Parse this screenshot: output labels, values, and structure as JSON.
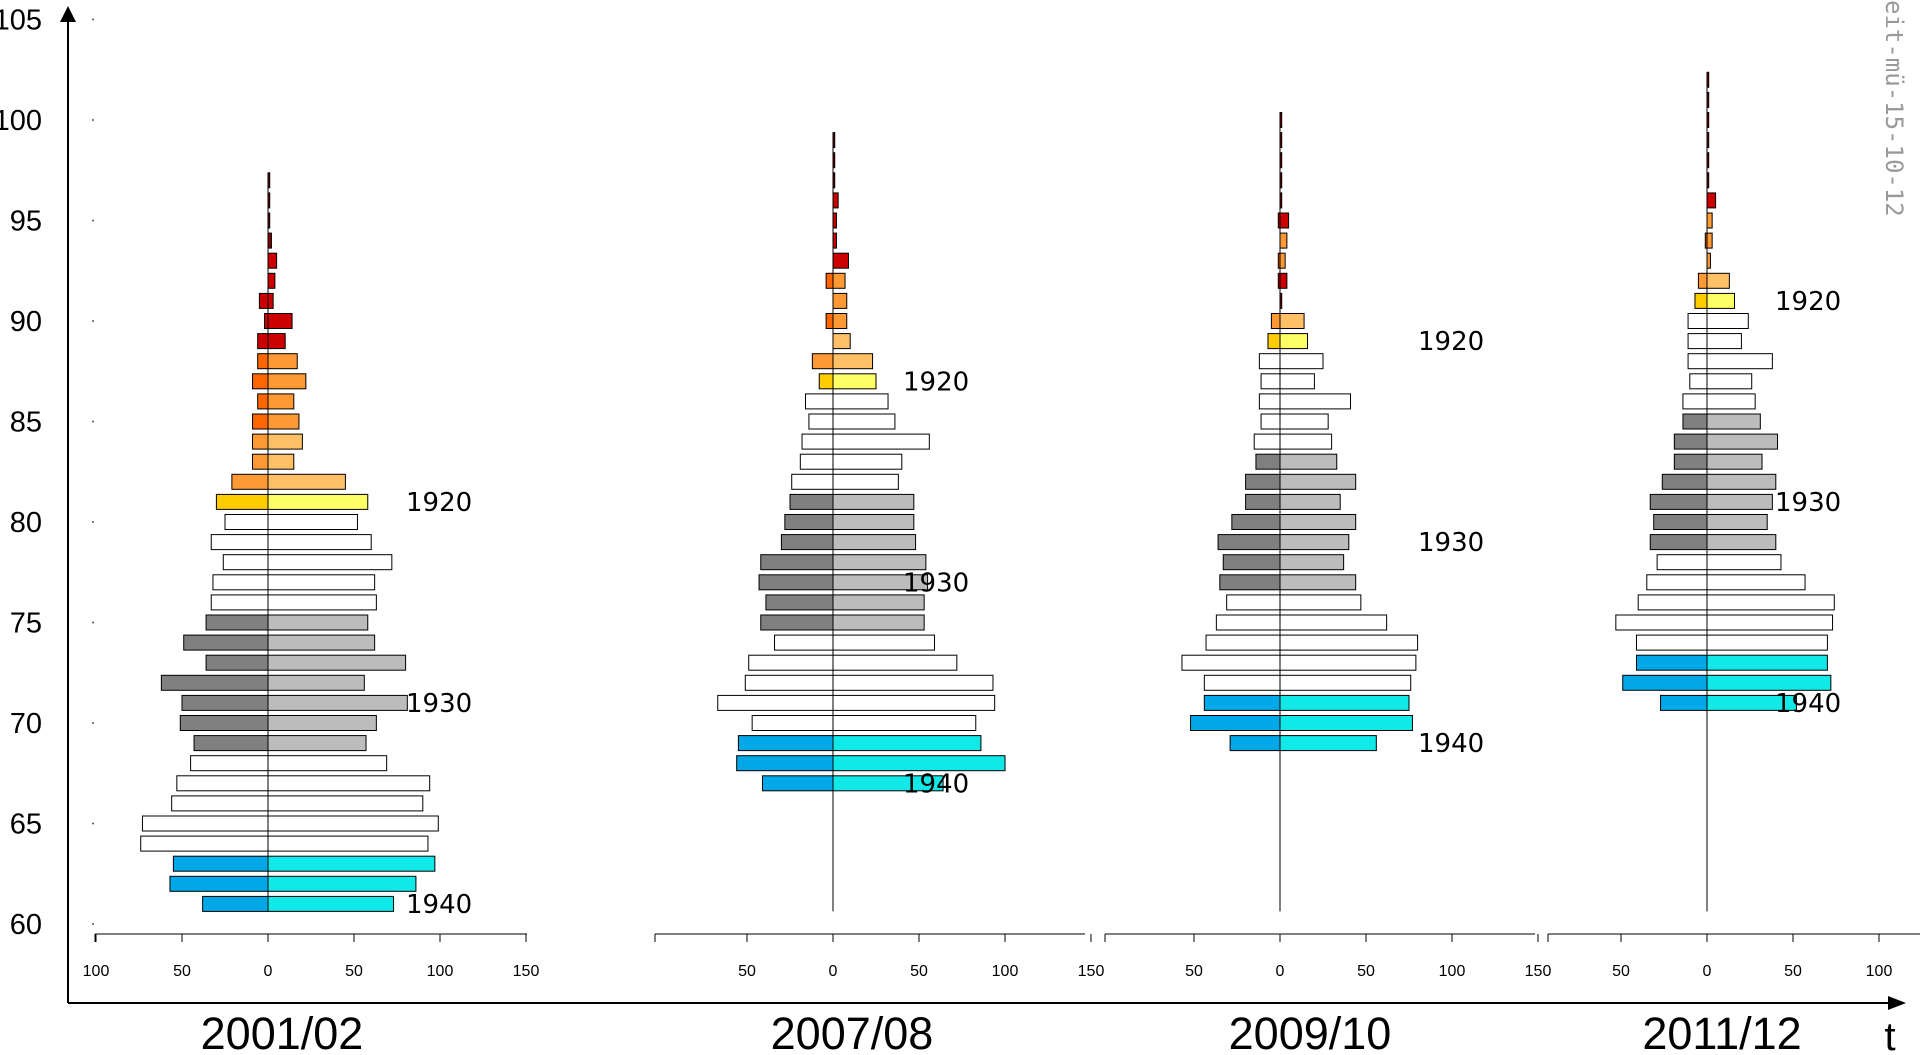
{
  "chart_data": {
    "type": "bar",
    "subtype": "population pyramids by birth year (age on y axis)",
    "y_axis": {
      "label": "",
      "ticks": [
        60,
        65,
        70,
        75,
        80,
        85,
        90,
        95,
        100,
        105
      ],
      "range": [
        60,
        105
      ]
    },
    "x_axis_end_label": "t",
    "watermark": "eit-mü-15-10-12",
    "colors": {
      "blue_left": "#00a8e8",
      "cyan_right": "#11e8e8",
      "dark_gray": "#808080",
      "light_gray": "#bcbcbc",
      "white": "#ffffff",
      "yellow_left": "#ffcc00",
      "yellow_right": "#ffff66",
      "orange_light": "#ffc066",
      "orange": "#ff9933",
      "orange_dark": "#ff6600",
      "red": "#cc0000",
      "dark_red": "#800000"
    },
    "panels": [
      {
        "period": "2001/02",
        "x_ticks": [
          "100",
          "50",
          "0",
          "50",
          "100",
          "150"
        ],
        "annotations": [
          {
            "text": "1920",
            "age": 81
          },
          {
            "text": "1930",
            "age": 71
          },
          {
            "text": "1940",
            "age": 61
          }
        ],
        "bars": [
          {
            "age": 61,
            "left": 38,
            "right": 73,
            "color": "blue"
          },
          {
            "age": 62,
            "left": 57,
            "right": 86,
            "color": "blue"
          },
          {
            "age": 63,
            "left": 55,
            "right": 97,
            "color": "blue"
          },
          {
            "age": 64,
            "left": 74,
            "right": 93,
            "color": "white"
          },
          {
            "age": 65,
            "left": 73,
            "right": 99,
            "color": "white"
          },
          {
            "age": 66,
            "left": 56,
            "right": 90,
            "color": "white"
          },
          {
            "age": 67,
            "left": 53,
            "right": 94,
            "color": "white"
          },
          {
            "age": 68,
            "left": 45,
            "right": 69,
            "color": "white"
          },
          {
            "age": 69,
            "left": 43,
            "right": 57,
            "color": "gray"
          },
          {
            "age": 70,
            "left": 51,
            "right": 63,
            "color": "gray"
          },
          {
            "age": 71,
            "left": 50,
            "right": 81,
            "color": "gray"
          },
          {
            "age": 72,
            "left": 62,
            "right": 56,
            "color": "gray"
          },
          {
            "age": 73,
            "left": 36,
            "right": 80,
            "color": "gray"
          },
          {
            "age": 74,
            "left": 49,
            "right": 62,
            "color": "gray"
          },
          {
            "age": 75,
            "left": 36,
            "right": 58,
            "color": "gray"
          },
          {
            "age": 76,
            "left": 33,
            "right": 63,
            "color": "white"
          },
          {
            "age": 77,
            "left": 32,
            "right": 62,
            "color": "white"
          },
          {
            "age": 78,
            "left": 26,
            "right": 72,
            "color": "white"
          },
          {
            "age": 79,
            "left": 33,
            "right": 60,
            "color": "white"
          },
          {
            "age": 80,
            "left": 25,
            "right": 52,
            "color": "white"
          },
          {
            "age": 81,
            "left": 30,
            "right": 58,
            "color": "yellow"
          },
          {
            "age": 82,
            "left": 21,
            "right": 45,
            "color": "orange_light"
          },
          {
            "age": 83,
            "left": 9,
            "right": 15,
            "color": "orange_light"
          },
          {
            "age": 84,
            "left": 9,
            "right": 20,
            "color": "orange_light"
          },
          {
            "age": 85,
            "left": 9,
            "right": 18,
            "color": "orange_dark"
          },
          {
            "age": 86,
            "left": 6,
            "right": 15,
            "color": "orange_dark"
          },
          {
            "age": 87,
            "left": 9,
            "right": 22,
            "color": "orange_dark"
          },
          {
            "age": 88,
            "left": 6,
            "right": 17,
            "color": "orange_dark"
          },
          {
            "age": 89,
            "left": 6,
            "right": 10,
            "color": "red"
          },
          {
            "age": 90,
            "left": 2,
            "right": 14,
            "color": "red"
          },
          {
            "age": 91,
            "left": 5,
            "right": 3,
            "color": "red"
          },
          {
            "age": 92,
            "left": 0,
            "right": 4,
            "color": "red"
          },
          {
            "age": 93,
            "left": 0,
            "right": 5,
            "color": "red"
          },
          {
            "age": 94,
            "left": 0,
            "right": 2,
            "color": "dark_red"
          },
          {
            "age": 95,
            "left": 0,
            "right": 1,
            "color": "dark_red"
          },
          {
            "age": 96,
            "left": 0,
            "right": 1,
            "color": "dark_red"
          },
          {
            "age": 97,
            "left": 0,
            "right": 1,
            "color": "dark_red"
          }
        ]
      },
      {
        "period": "2007/08",
        "x_ticks": [
          "50",
          "0",
          "50",
          "100",
          "150"
        ],
        "annotations": [
          {
            "text": "1920",
            "age": 87
          },
          {
            "text": "1930",
            "age": 77
          },
          {
            "text": "1940",
            "age": 67
          }
        ],
        "bars": [
          {
            "age": 67,
            "left": 41,
            "right": 64,
            "color": "blue"
          },
          {
            "age": 68,
            "left": 56,
            "right": 100,
            "color": "blue"
          },
          {
            "age": 69,
            "left": 55,
            "right": 86,
            "color": "blue"
          },
          {
            "age": 70,
            "left": 47,
            "right": 83,
            "color": "white"
          },
          {
            "age": 71,
            "left": 67,
            "right": 94,
            "color": "white"
          },
          {
            "age": 72,
            "left": 51,
            "right": 93,
            "color": "white"
          },
          {
            "age": 73,
            "left": 49,
            "right": 72,
            "color": "white"
          },
          {
            "age": 74,
            "left": 34,
            "right": 59,
            "color": "white"
          },
          {
            "age": 75,
            "left": 42,
            "right": 53,
            "color": "gray"
          },
          {
            "age": 76,
            "left": 39,
            "right": 53,
            "color": "gray"
          },
          {
            "age": 77,
            "left": 43,
            "right": 55,
            "color": "gray"
          },
          {
            "age": 78,
            "left": 42,
            "right": 54,
            "color": "gray"
          },
          {
            "age": 79,
            "left": 30,
            "right": 48,
            "color": "gray"
          },
          {
            "age": 80,
            "left": 28,
            "right": 47,
            "color": "gray"
          },
          {
            "age": 81,
            "left": 25,
            "right": 47,
            "color": "gray"
          },
          {
            "age": 82,
            "left": 24,
            "right": 38,
            "color": "white"
          },
          {
            "age": 83,
            "left": 19,
            "right": 40,
            "color": "white"
          },
          {
            "age": 84,
            "left": 18,
            "right": 56,
            "color": "white"
          },
          {
            "age": 85,
            "left": 14,
            "right": 36,
            "color": "white"
          },
          {
            "age": 86,
            "left": 16,
            "right": 32,
            "color": "white"
          },
          {
            "age": 87,
            "left": 8,
            "right": 25,
            "color": "yellow"
          },
          {
            "age": 88,
            "left": 12,
            "right": 23,
            "color": "orange_light"
          },
          {
            "age": 89,
            "left": 0,
            "right": 10,
            "color": "orange_light"
          },
          {
            "age": 90,
            "left": 4,
            "right": 8,
            "color": "orange_dark"
          },
          {
            "age": 91,
            "left": 0,
            "right": 8,
            "color": "orange_dark"
          },
          {
            "age": 92,
            "left": 4,
            "right": 7,
            "color": "orange_dark"
          },
          {
            "age": 93,
            "left": 0,
            "right": 9,
            "color": "red"
          },
          {
            "age": 94,
            "left": 0,
            "right": 2,
            "color": "red"
          },
          {
            "age": 95,
            "left": 0,
            "right": 2,
            "color": "red"
          },
          {
            "age": 96,
            "left": 0,
            "right": 3,
            "color": "red"
          },
          {
            "age": 97,
            "left": 0,
            "right": 1,
            "color": "dark_red"
          },
          {
            "age": 98,
            "left": 0,
            "right": 1,
            "color": "dark_red"
          },
          {
            "age": 99,
            "left": 0,
            "right": 1,
            "color": "dark_red"
          }
        ]
      },
      {
        "period": "2009/10",
        "x_ticks": [
          "50",
          "0",
          "50",
          "100",
          "150"
        ],
        "annotations": [
          {
            "text": "1920",
            "age": 89
          },
          {
            "text": "1930",
            "age": 79
          },
          {
            "text": "1940",
            "age": 69
          }
        ],
        "bars": [
          {
            "age": 69,
            "left": 29,
            "right": 56,
            "color": "blue"
          },
          {
            "age": 70,
            "left": 52,
            "right": 77,
            "color": "blue"
          },
          {
            "age": 71,
            "left": 44,
            "right": 75,
            "color": "blue"
          },
          {
            "age": 72,
            "left": 44,
            "right": 76,
            "color": "white"
          },
          {
            "age": 73,
            "left": 57,
            "right": 79,
            "color": "white"
          },
          {
            "age": 74,
            "left": 43,
            "right": 80,
            "color": "white"
          },
          {
            "age": 75,
            "left": 37,
            "right": 62,
            "color": "white"
          },
          {
            "age": 76,
            "left": 31,
            "right": 47,
            "color": "white"
          },
          {
            "age": 77,
            "left": 35,
            "right": 44,
            "color": "gray"
          },
          {
            "age": 78,
            "left": 33,
            "right": 37,
            "color": "gray"
          },
          {
            "age": 79,
            "left": 36,
            "right": 40,
            "color": "gray"
          },
          {
            "age": 80,
            "left": 28,
            "right": 44,
            "color": "gray"
          },
          {
            "age": 81,
            "left": 20,
            "right": 35,
            "color": "gray"
          },
          {
            "age": 82,
            "left": 20,
            "right": 44,
            "color": "gray"
          },
          {
            "age": 83,
            "left": 14,
            "right": 33,
            "color": "gray"
          },
          {
            "age": 84,
            "left": 15,
            "right": 30,
            "color": "white"
          },
          {
            "age": 85,
            "left": 11,
            "right": 28,
            "color": "white"
          },
          {
            "age": 86,
            "left": 12,
            "right": 41,
            "color": "white"
          },
          {
            "age": 87,
            "left": 11,
            "right": 20,
            "color": "white"
          },
          {
            "age": 88,
            "left": 12,
            "right": 25,
            "color": "white"
          },
          {
            "age": 89,
            "left": 7,
            "right": 16,
            "color": "yellow"
          },
          {
            "age": 90,
            "left": 5,
            "right": 14,
            "color": "orange_light"
          },
          {
            "age": 91,
            "left": 0,
            "right": 1,
            "color": "dark_red"
          },
          {
            "age": 92,
            "left": 1,
            "right": 4,
            "color": "red"
          },
          {
            "age": 93,
            "left": 1,
            "right": 3,
            "color": "orange_dark"
          },
          {
            "age": 94,
            "left": 0,
            "right": 4,
            "color": "orange_dark"
          },
          {
            "age": 95,
            "left": 1,
            "right": 5,
            "color": "red"
          },
          {
            "age": 96,
            "left": 0,
            "right": 1,
            "color": "dark_red"
          },
          {
            "age": 97,
            "left": 0,
            "right": 1,
            "color": "dark_red"
          },
          {
            "age": 98,
            "left": 0,
            "right": 1,
            "color": "dark_red"
          },
          {
            "age": 99,
            "left": 0,
            "right": 1,
            "color": "dark_red"
          },
          {
            "age": 100,
            "left": 0,
            "right": 1,
            "color": "dark_red"
          }
        ]
      },
      {
        "period": "2011/12",
        "x_ticks": [
          "50",
          "0",
          "50",
          "100"
        ],
        "annotations": [
          {
            "text": "1920",
            "age": 91
          },
          {
            "text": "1930",
            "age": 81
          },
          {
            "text": "1940",
            "age": 71
          }
        ],
        "bars": [
          {
            "age": 71,
            "left": 27,
            "right": 52,
            "color": "blue"
          },
          {
            "age": 72,
            "left": 49,
            "right": 72,
            "color": "blue"
          },
          {
            "age": 73,
            "left": 41,
            "right": 70,
            "color": "blue"
          },
          {
            "age": 74,
            "left": 41,
            "right": 70,
            "color": "white"
          },
          {
            "age": 75,
            "left": 53,
            "right": 73,
            "color": "white"
          },
          {
            "age": 76,
            "left": 40,
            "right": 74,
            "color": "white"
          },
          {
            "age": 77,
            "left": 35,
            "right": 57,
            "color": "white"
          },
          {
            "age": 78,
            "left": 29,
            "right": 43,
            "color": "white"
          },
          {
            "age": 79,
            "left": 33,
            "right": 40,
            "color": "gray"
          },
          {
            "age": 80,
            "left": 31,
            "right": 35,
            "color": "gray"
          },
          {
            "age": 81,
            "left": 33,
            "right": 38,
            "color": "gray"
          },
          {
            "age": 82,
            "left": 26,
            "right": 40,
            "color": "gray"
          },
          {
            "age": 83,
            "left": 19,
            "right": 32,
            "color": "gray"
          },
          {
            "age": 84,
            "left": 19,
            "right": 41,
            "color": "gray"
          },
          {
            "age": 85,
            "left": 14,
            "right": 31,
            "color": "gray"
          },
          {
            "age": 86,
            "left": 14,
            "right": 28,
            "color": "white"
          },
          {
            "age": 87,
            "left": 10,
            "right": 26,
            "color": "white"
          },
          {
            "age": 88,
            "left": 11,
            "right": 38,
            "color": "white"
          },
          {
            "age": 89,
            "left": 11,
            "right": 20,
            "color": "white"
          },
          {
            "age": 90,
            "left": 11,
            "right": 24,
            "color": "white"
          },
          {
            "age": 91,
            "left": 7,
            "right": 16,
            "color": "yellow"
          },
          {
            "age": 92,
            "left": 5,
            "right": 13,
            "color": "orange_light"
          },
          {
            "age": 93,
            "left": 0,
            "right": 2,
            "color": "orange_dark"
          },
          {
            "age": 94,
            "left": 1,
            "right": 3,
            "color": "orange_dark"
          },
          {
            "age": 95,
            "left": 0,
            "right": 3,
            "color": "orange_dark"
          },
          {
            "age": 96,
            "left": 0,
            "right": 5,
            "color": "red"
          },
          {
            "age": 97,
            "left": 0,
            "right": 1,
            "color": "dark_red"
          },
          {
            "age": 98,
            "left": 0,
            "right": 1,
            "color": "dark_red"
          },
          {
            "age": 99,
            "left": 0,
            "right": 1,
            "color": "dark_red"
          },
          {
            "age": 100,
            "left": 0,
            "right": 1,
            "color": "dark_red"
          },
          {
            "age": 101,
            "left": 0,
            "right": 1,
            "color": "dark_red"
          },
          {
            "age": 102,
            "left": 0,
            "right": 1,
            "color": "dark_red"
          }
        ]
      }
    ]
  }
}
